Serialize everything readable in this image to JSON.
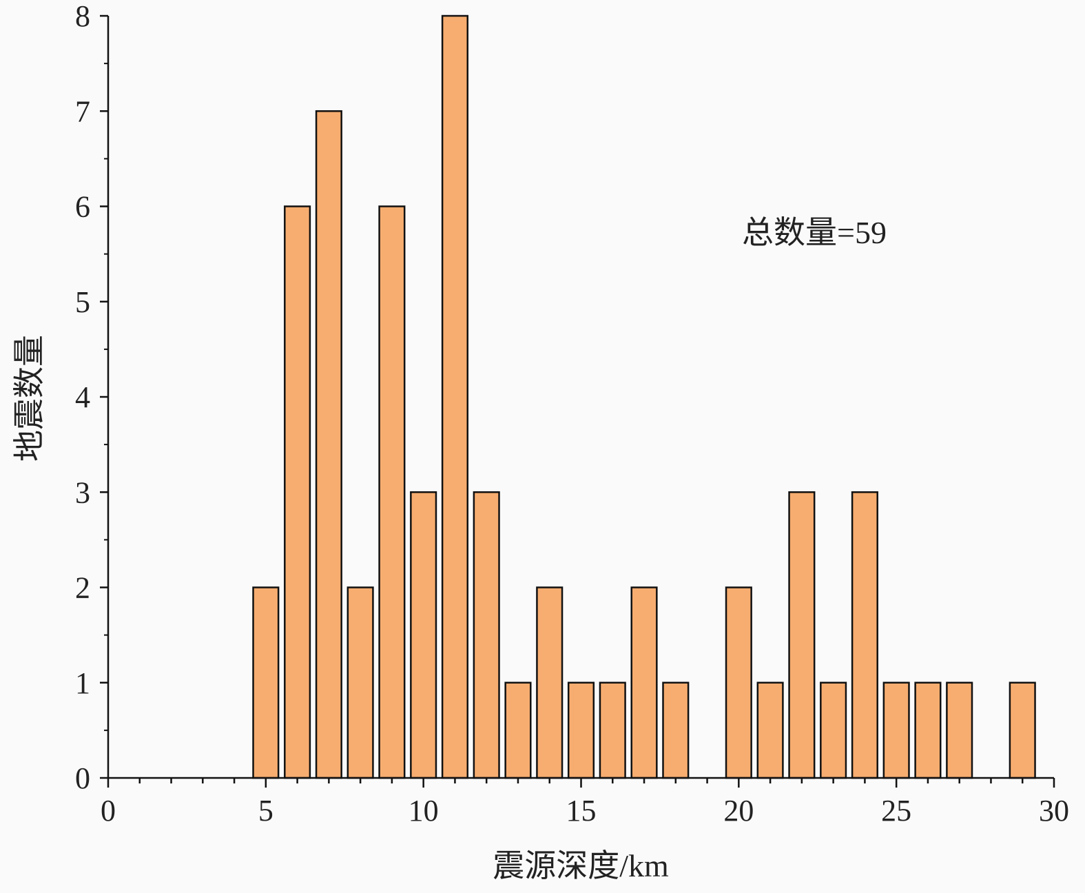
{
  "chart_data": {
    "type": "bar",
    "title": "",
    "xlabel": "震源深度/km",
    "ylabel": "地震数量",
    "annotation": "总数量=59",
    "xlim": [
      0,
      30
    ],
    "ylim": [
      0,
      8
    ],
    "x_ticks": [
      "0",
      "5",
      "10",
      "15",
      "20",
      "25",
      "30"
    ],
    "y_ticks": [
      "0",
      "1",
      "2",
      "3",
      "4",
      "5",
      "6",
      "7",
      "8"
    ],
    "x": [
      5,
      6,
      7,
      8,
      9,
      10,
      11,
      12,
      13,
      14,
      15,
      16,
      17,
      18,
      20,
      21,
      22,
      23,
      24,
      25,
      26,
      27,
      29
    ],
    "values": [
      2,
      6,
      7,
      2,
      6,
      3,
      8,
      3,
      1,
      2,
      1,
      1,
      2,
      1,
      2,
      1,
      3,
      1,
      3,
      1,
      1,
      1,
      1
    ],
    "bar_color": "#f7ad70",
    "bar_edge_color": "#111111",
    "grid": false,
    "legend": "none"
  }
}
